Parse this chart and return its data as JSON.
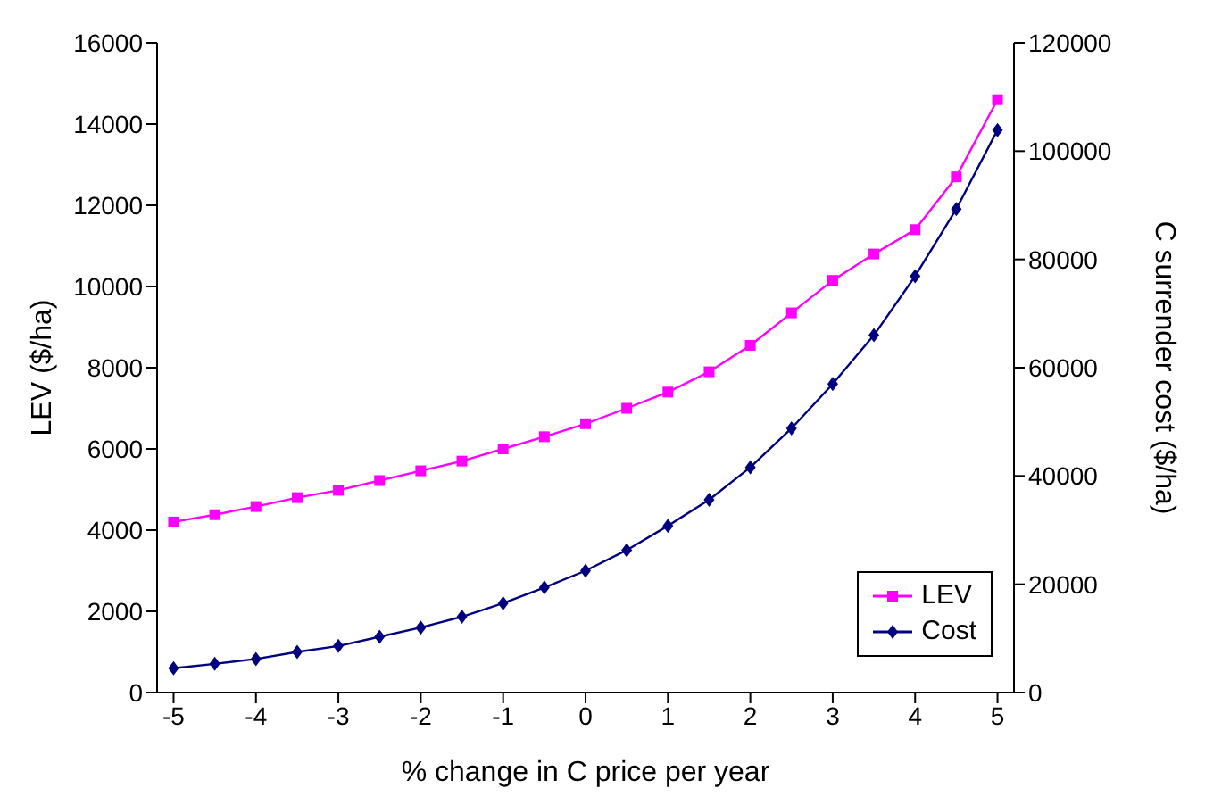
{
  "chart_data": {
    "type": "line",
    "xlabel": "% change in C price per year",
    "ylabel": "LEV ($/ha)",
    "y2label": "C surrender cost ($/ha)",
    "x": [
      -5,
      -4.5,
      -4,
      -3.5,
      -3,
      -2.5,
      -2,
      -1.5,
      -1,
      -0.5,
      0,
      0.5,
      1,
      1.5,
      2,
      2.5,
      3,
      3.5,
      4,
      4.5,
      5
    ],
    "series": [
      {
        "name": "LEV",
        "color": "#ff00ff",
        "marker": "square",
        "values": [
          4200,
          4380,
          4580,
          4800,
          4980,
          5220,
          5460,
          5700,
          6000,
          6300,
          6620,
          7000,
          7400,
          7900,
          8550,
          9350,
          10150,
          10800,
          11400,
          12700,
          14600
        ]
      },
      {
        "name": "Cost",
        "color": "#000080",
        "marker": "diamond",
        "axis": "y2",
        "values": [
          4500,
          5300,
          6200,
          7500,
          8600,
          10300,
          12000,
          14000,
          16500,
          19400,
          22500,
          26300,
          30800,
          35600,
          41600,
          48800,
          57000,
          66000,
          76900,
          89300,
          103900
        ]
      }
    ],
    "xlim": [
      -5.2,
      5.2
    ],
    "xticks": [
      -5,
      -4,
      -3,
      -2,
      -1,
      0,
      1,
      2,
      3,
      4,
      5
    ],
    "ylim": [
      0,
      16000
    ],
    "yticks": [
      0,
      2000,
      4000,
      6000,
      8000,
      10000,
      12000,
      14000,
      16000
    ],
    "y2lim": [
      0,
      120000
    ],
    "y2ticks": [
      0,
      20000,
      40000,
      60000,
      80000,
      100000,
      120000
    ],
    "grid": false,
    "legend": "bottom right"
  }
}
